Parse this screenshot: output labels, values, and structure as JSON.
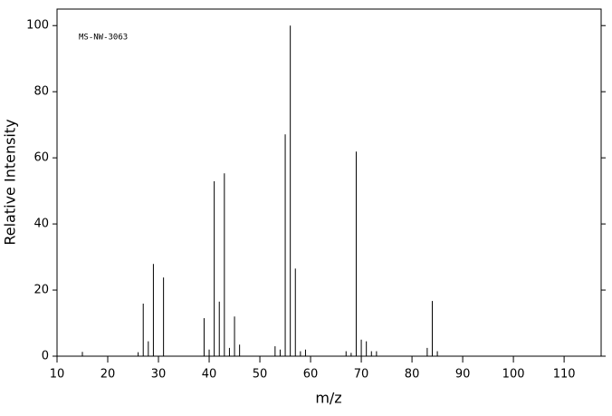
{
  "chart_data": {
    "type": "stick",
    "annotation": "MS-NW-3063",
    "xlabel": "m/z",
    "ylabel": "Relative Intensity",
    "x": [
      15,
      26,
      27,
      28,
      29,
      31,
      39,
      40,
      41,
      42,
      43,
      44,
      45,
      46,
      53,
      54,
      55,
      56,
      57,
      58,
      59,
      67,
      68,
      69,
      70,
      71,
      72,
      73,
      83,
      84,
      85
    ],
    "values": [
      1.3,
      1.2,
      15.9,
      4.5,
      27.9,
      23.8,
      11.5,
      2,
      52.9,
      16.5,
      55.3,
      2.5,
      12,
      3.5,
      3,
      2,
      67.1,
      100,
      26.5,
      1.5,
      2,
      1.5,
      1,
      61.9,
      5,
      4.5,
      1.5,
      1.5,
      2.5,
      16.7,
      1.5
    ],
    "color": "#000000",
    "xlim": [
      10,
      117.3
    ],
    "ylim": [
      0,
      105
    ],
    "xticks": [
      10,
      20,
      30,
      40,
      50,
      60,
      70,
      80,
      90,
      100,
      110
    ],
    "yticks": [
      0,
      20,
      40,
      60,
      80,
      100
    ]
  }
}
